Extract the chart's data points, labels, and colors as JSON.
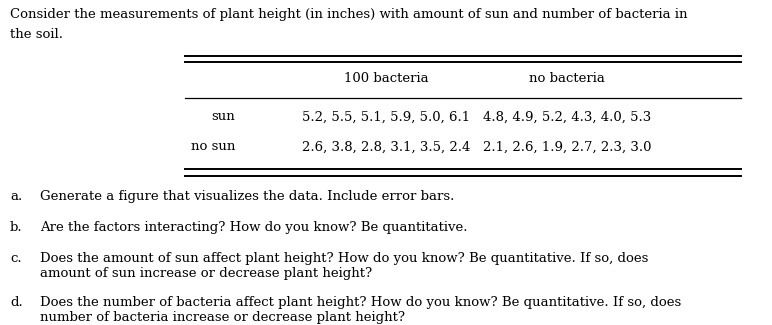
{
  "header_line1": "Consider the measurements of plant height (in inches) with amount of sun and number of bacteria in",
  "header_line2": "the soil.",
  "col_header1": "100 bacteria",
  "col_header2": "no bacteria",
  "row1_label": "sun",
  "row2_label": "no sun",
  "row1_col1": "5.2, 5.5, 5.1, 5.9, 5.0, 6.1",
  "row1_col2": "4.8, 4.9, 5.2, 4.3, 4.0, 5.3",
  "row2_col1": "2.6, 3.8, 2.8, 3.1, 3.5, 2.4",
  "row2_col2": "2.1, 2.6, 1.9, 2.7, 2.3, 3.0",
  "q_labels": [
    "a.",
    "b.",
    "c.",
    "d."
  ],
  "q_texts": [
    "Generate a figure that visualizes the data. Include error bars.",
    "Are the factors interacting? How do you know? Be quantitative.",
    "Does the amount of sun affect plant height? How do you know? Be quantitative. If so, does\namount of sun increase or decrease plant height?",
    "Does the number of bacteria affect plant height? How do you know? Be quantitative. If so, does\nnumber of bacteria increase or decrease plant height?"
  ],
  "bg_color": "#ffffff",
  "text_color": "#000000",
  "font_size": 9.5
}
